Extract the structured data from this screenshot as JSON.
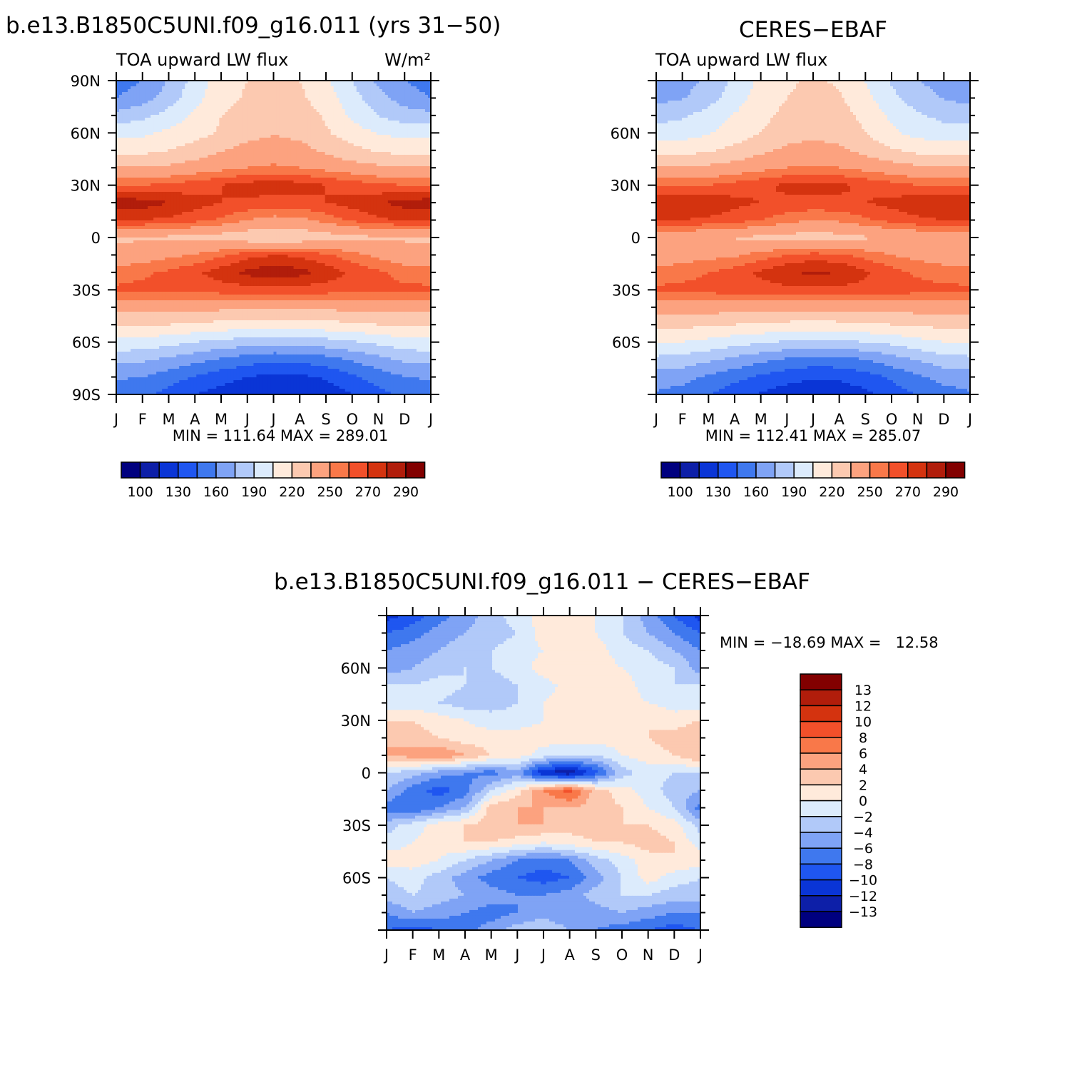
{
  "colors": {
    "abs_scale": [
      "#00007f",
      "#0d1fa8",
      "#0a35d6",
      "#1f56f0",
      "#3f78ee",
      "#7fa3f5",
      "#b1c9f9",
      "#dcebfc",
      "#ffeadb",
      "#fcc9b0",
      "#fca27f",
      "#f97849",
      "#f2502a",
      "#d4330f",
      "#b11d0b",
      "#820000"
    ],
    "diff_scale": [
      "#00007f",
      "#0d1fa8",
      "#0a35d6",
      "#1f56f0",
      "#3f78ee",
      "#7fa3f5",
      "#b1c9f9",
      "#dcebfc",
      "#ffeadb",
      "#fcc9b0",
      "#fca27f",
      "#f97849",
      "#f2502a",
      "#d4330f",
      "#b11d0b",
      "#820000"
    ]
  },
  "chart_data": [
    {
      "type": "heatmap",
      "title": "b.e13.B1850C5UNI.f09_g16.011 (yrs 31−50)",
      "left_label": "TOA upward LW flux",
      "right_label": "W/m²",
      "x_ticks": [
        "J",
        "F",
        "M",
        "A",
        "M",
        "J",
        "J",
        "A",
        "S",
        "O",
        "N",
        "D",
        "J"
      ],
      "y_ticks": [
        "90N",
        "60N",
        "30N",
        "0",
        "30S",
        "60S",
        "90S"
      ],
      "xlim": [
        0,
        12
      ],
      "ylim": [
        -90,
        90
      ],
      "stats": "MIN = 111.64 MAX = 289.01",
      "min": 111.64,
      "max": 289.01,
      "colorbar_labels": [
        "100",
        "130",
        "160",
        "190",
        "220",
        "250",
        "270",
        "290"
      ],
      "x": [
        0,
        1,
        2,
        3,
        4,
        5,
        6,
        7,
        8,
        9,
        10,
        11,
        12
      ],
      "y": [
        -90,
        -80,
        -70,
        -60,
        -50,
        -40,
        -30,
        -20,
        -10,
        0,
        10,
        20,
        30,
        40,
        50,
        60,
        70,
        80,
        90
      ],
      "z": [
        [
          150,
          148,
          140,
          130,
          124,
          118,
          115,
          116,
          120,
          130,
          140,
          148,
          150
        ],
        [
          162,
          160,
          152,
          144,
          136,
          130,
          126,
          127,
          132,
          142,
          152,
          160,
          162
        ],
        [
          180,
          178,
          172,
          165,
          158,
          152,
          148,
          149,
          154,
          162,
          170,
          178,
          180
        ],
        [
          200,
          199,
          195,
          190,
          186,
          182,
          180,
          181,
          184,
          188,
          194,
          199,
          200
        ],
        [
          222,
          222,
          220,
          218,
          215,
          213,
          212,
          213,
          215,
          217,
          220,
          222,
          222
        ],
        [
          240,
          240,
          240,
          240,
          239,
          238,
          238,
          238,
          239,
          239,
          240,
          240,
          240
        ],
        [
          262,
          263,
          264,
          264,
          265,
          266,
          266,
          266,
          265,
          264,
          263,
          262,
          262
        ],
        [
          255,
          258,
          262,
          268,
          275,
          283,
          287,
          284,
          276,
          268,
          262,
          256,
          255
        ],
        [
          240,
          243,
          247,
          251,
          258,
          266,
          270,
          268,
          262,
          254,
          247,
          241,
          240
        ],
        [
          232,
          233,
          232,
          230,
          228,
          225,
          222,
          224,
          228,
          231,
          233,
          233,
          232
        ],
        [
          272,
          270,
          268,
          264,
          258,
          250,
          245,
          247,
          254,
          262,
          268,
          271,
          272
        ],
        [
          286,
          285,
          280,
          274,
          270,
          268,
          266,
          267,
          270,
          274,
          279,
          284,
          286
        ],
        [
          260,
          260,
          262,
          266,
          270,
          274,
          276,
          274,
          270,
          266,
          262,
          260,
          260
        ],
        [
          236,
          236,
          238,
          242,
          246,
          250,
          252,
          250,
          246,
          242,
          238,
          236,
          236
        ],
        [
          215,
          216,
          220,
          226,
          234,
          240,
          242,
          240,
          232,
          224,
          218,
          215,
          215
        ],
        [
          200,
          202,
          208,
          214,
          222,
          230,
          234,
          231,
          222,
          212,
          204,
          200,
          200
        ],
        [
          180,
          186,
          196,
          208,
          220,
          226,
          230,
          228,
          218,
          202,
          190,
          182,
          180
        ],
        [
          160,
          168,
          182,
          200,
          215,
          222,
          225,
          223,
          212,
          196,
          180,
          168,
          160
        ],
        [
          152,
          160,
          176,
          196,
          212,
          220,
          223,
          220,
          208,
          190,
          172,
          160,
          152
        ]
      ]
    },
    {
      "type": "heatmap",
      "title": "CERES−EBAF",
      "left_label": "TOA upward LW flux",
      "x_ticks": [
        "J",
        "F",
        "M",
        "A",
        "M",
        "J",
        "J",
        "A",
        "S",
        "O",
        "N",
        "D",
        "J"
      ],
      "y_ticks": [
        "60N",
        "30N",
        "0",
        "30S",
        "60S"
      ],
      "xlim": [
        0,
        12
      ],
      "ylim": [
        -90,
        90
      ],
      "stats": "MIN = 112.41 MAX = 285.07",
      "min": 112.41,
      "max": 285.07,
      "colorbar_labels": [
        "100",
        "130",
        "160",
        "190",
        "220",
        "250",
        "270",
        "290"
      ],
      "x": [
        0,
        1,
        2,
        3,
        4,
        5,
        6,
        7,
        8,
        9,
        10,
        11,
        12
      ],
      "y": [
        -90,
        -80,
        -70,
        -60,
        -50,
        -40,
        -30,
        -20,
        -10,
        0,
        10,
        20,
        30,
        40,
        50,
        60,
        70,
        80,
        90
      ],
      "z": [
        [
          158,
          154,
          146,
          136,
          128,
          122,
          118,
          120,
          126,
          136,
          146,
          154,
          158
        ],
        [
          168,
          165,
          158,
          150,
          142,
          136,
          132,
          133,
          138,
          148,
          158,
          165,
          168
        ],
        [
          186,
          184,
          178,
          171,
          164,
          158,
          154,
          155,
          160,
          168,
          176,
          184,
          186
        ],
        [
          206,
          205,
          201,
          196,
          192,
          188,
          186,
          187,
          190,
          194,
          200,
          205,
          206
        ],
        [
          224,
          224,
          222,
          220,
          218,
          216,
          215,
          216,
          218,
          220,
          222,
          224,
          224
        ],
        [
          242,
          242,
          242,
          242,
          241,
          240,
          240,
          240,
          241,
          241,
          242,
          242,
          242
        ],
        [
          262,
          263,
          264,
          265,
          266,
          267,
          267,
          267,
          266,
          265,
          264,
          263,
          262
        ],
        [
          254,
          256,
          260,
          265,
          272,
          279,
          282,
          280,
          272,
          264,
          258,
          255,
          254
        ],
        [
          242,
          244,
          246,
          248,
          254,
          260,
          264,
          262,
          256,
          250,
          246,
          243,
          242
        ],
        [
          238,
          238,
          236,
          234,
          232,
          230,
          228,
          230,
          233,
          236,
          238,
          238,
          238
        ],
        [
          270,
          270,
          268,
          265,
          260,
          254,
          250,
          252,
          258,
          264,
          268,
          270,
          270
        ],
        [
          280,
          281,
          278,
          273,
          270,
          268,
          267,
          268,
          270,
          273,
          277,
          280,
          280
        ],
        [
          258,
          258,
          260,
          264,
          268,
          272,
          274,
          272,
          268,
          264,
          260,
          258,
          258
        ],
        [
          236,
          236,
          238,
          242,
          246,
          250,
          252,
          250,
          246,
          242,
          238,
          236,
          236
        ],
        [
          214,
          215,
          218,
          224,
          232,
          238,
          240,
          238,
          230,
          222,
          216,
          214,
          214
        ],
        [
          196,
          198,
          204,
          212,
          220,
          228,
          232,
          229,
          220,
          208,
          200,
          196,
          196
        ],
        [
          184,
          188,
          196,
          206,
          216,
          224,
          228,
          226,
          216,
          202,
          192,
          186,
          184
        ],
        [
          170,
          174,
          184,
          198,
          212,
          220,
          224,
          222,
          210,
          194,
          182,
          174,
          170
        ],
        [
          164,
          168,
          178,
          194,
          208,
          218,
          222,
          218,
          204,
          188,
          176,
          168,
          164
        ]
      ]
    },
    {
      "type": "heatmap",
      "title": "b.e13.B1850C5UNI.f09_g16.011 − CERES−EBAF",
      "x_ticks": [
        "J",
        "F",
        "M",
        "A",
        "M",
        "J",
        "J",
        "A",
        "S",
        "O",
        "N",
        "D",
        "J"
      ],
      "y_ticks": [
        "60N",
        "30N",
        "0",
        "30S",
        "60S"
      ],
      "xlim": [
        0,
        12
      ],
      "ylim": [
        -90,
        90
      ],
      "stats": "MIN = −18.69 MAX =   12.58",
      "min": -18.69,
      "max": 12.58,
      "colorbar_labels": [
        "13",
        "12",
        "10",
        "8",
        "6",
        "4",
        "2",
        "0",
        "−2",
        "−4",
        "−6",
        "−8",
        "−10",
        "−12",
        "−13"
      ],
      "x": [
        0,
        1,
        2,
        3,
        4,
        5,
        6,
        7,
        8,
        9,
        10,
        11,
        12
      ],
      "y": [
        -90,
        -80,
        -70,
        -60,
        -50,
        -40,
        -30,
        -20,
        -10,
        0,
        10,
        20,
        30,
        40,
        50,
        60,
        70,
        80,
        90
      ],
      "z": [
        [
          -8,
          -9,
          -8,
          -7,
          -5,
          -3,
          -2,
          -4,
          -6,
          -7,
          -8,
          -9,
          -8
        ],
        [
          -6,
          -4,
          -5,
          -6,
          -7,
          -6,
          -5,
          -6,
          -5,
          -4,
          -5,
          -6,
          -6
        ],
        [
          -3,
          -2,
          -3,
          -4,
          -5,
          -6,
          -6,
          -5,
          -3,
          -2,
          -2,
          -3,
          -3
        ],
        [
          -2,
          -1,
          -3,
          -5,
          -7,
          -8,
          -9,
          -8,
          -5,
          -2,
          1,
          -1,
          -2
        ],
        [
          1,
          1,
          0,
          -2,
          -4,
          -6,
          -7,
          -6,
          -3,
          -1,
          1,
          2,
          1
        ],
        [
          -1,
          0,
          1,
          2,
          2,
          1,
          0,
          1,
          2,
          2,
          3,
          2,
          -1
        ],
        [
          -3,
          -1,
          1,
          2,
          3,
          4,
          4,
          3,
          3,
          2,
          2,
          1,
          -3
        ],
        [
          -7,
          -8,
          -6,
          -4,
          3,
          4,
          4,
          4,
          3,
          2,
          0,
          -2,
          -7
        ],
        [
          -4,
          -7,
          -9,
          -7,
          -2,
          1,
          6,
          9,
          3,
          1,
          -1,
          -3,
          -4
        ],
        [
          -2,
          -3,
          -5,
          -6,
          -7,
          -5,
          -12,
          -14,
          -9,
          -3,
          -1,
          -2,
          -2
        ],
        [
          4,
          5,
          6,
          4,
          2,
          1,
          -1,
          -2,
          -2,
          0,
          1,
          2,
          4
        ],
        [
          4,
          3,
          2,
          1,
          1,
          1,
          1,
          1,
          1,
          1,
          2,
          3,
          4
        ],
        [
          2,
          2,
          1,
          0,
          -1,
          -1,
          0,
          1,
          2,
          2,
          2,
          1,
          2
        ],
        [
          -1,
          -1,
          -2,
          -3,
          -3,
          -2,
          0,
          1,
          2,
          1,
          0,
          -1,
          -1
        ],
        [
          -2,
          -2,
          -1,
          -2,
          -3,
          -2,
          -1,
          1,
          2,
          1,
          -1,
          -2,
          -2
        ],
        [
          -5,
          -4,
          -3,
          -2,
          -2,
          -1,
          1,
          2,
          1,
          0,
          -1,
          -2,
          -5
        ],
        [
          -6,
          -5,
          -4,
          -3,
          -2,
          -1,
          0,
          1,
          1,
          -1,
          -2,
          -4,
          -6
        ],
        [
          -8,
          -7,
          -5,
          -4,
          -3,
          -2,
          1,
          1,
          0,
          -2,
          -4,
          -6,
          -8
        ],
        [
          -11,
          -9,
          -7,
          -5,
          -3,
          -1,
          1,
          2,
          0,
          -2,
          -5,
          -8,
          -11
        ]
      ]
    }
  ]
}
